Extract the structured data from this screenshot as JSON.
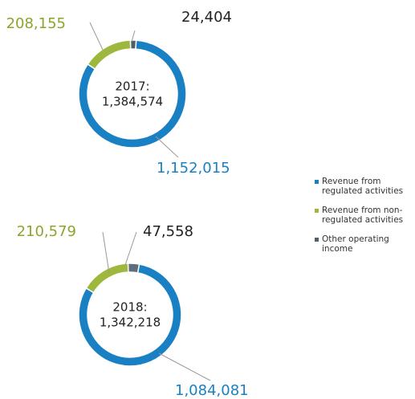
{
  "chart_data": [
    {
      "type": "donut",
      "title": "2017:",
      "total": 1384574,
      "total_label": "1,384,574",
      "categories": [
        "Revenue from regulated activities",
        "Revenue from non-regulated activities",
        "Other operating income"
      ],
      "values": [
        1152015,
        208155,
        24404
      ],
      "value_labels": [
        "1,152,015",
        "208,155",
        "24,404"
      ],
      "colors": [
        "#1a80c4",
        "#9db83c",
        "#4e5e6c"
      ]
    },
    {
      "type": "donut",
      "title": "2018:",
      "total": 1342218,
      "total_label": "1,342,218",
      "categories": [
        "Revenue from regulated activities",
        "Revenue from non-regulated activities",
        "Other operating income"
      ],
      "values": [
        1084081,
        210579,
        47558
      ],
      "value_labels": [
        "1,084,081",
        "210,579",
        "47,558"
      ],
      "colors": [
        "#1a80c4",
        "#9db83c",
        "#5e6e7c"
      ]
    }
  ]
}
